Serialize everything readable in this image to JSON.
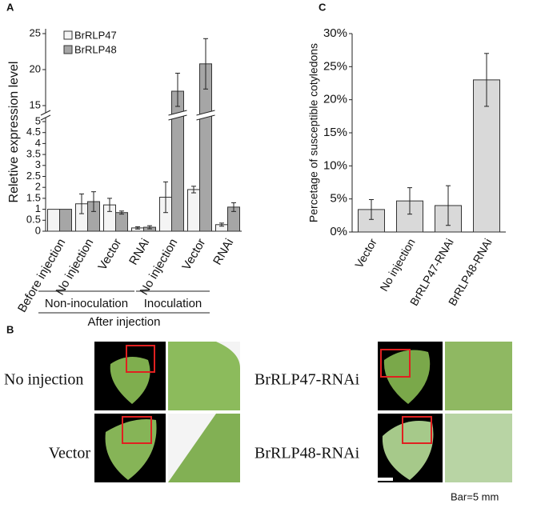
{
  "chart_data": [
    {
      "label": "A",
      "type": "bar",
      "ylabel": "Reletive expression level",
      "categories": [
        "Before injection",
        "No injection",
        "Vector",
        "RNAi",
        "No injection",
        "Vector",
        "RNAi"
      ],
      "series": [
        {
          "name": "BrRLP47",
          "color": "#f4f4f4",
          "values": [
            1,
            1.25,
            1.2,
            0.15,
            1.55,
            1.9,
            0.3
          ],
          "errors": [
            null,
            0.45,
            0.3,
            0.05,
            0.7,
            0.15,
            0.07
          ]
        },
        {
          "name": "BrRLP48",
          "color": "#a6a6a6",
          "values": [
            1,
            1.35,
            0.85,
            0.18,
            17,
            20.8,
            1.1
          ],
          "errors": [
            null,
            0.45,
            0.07,
            0.07,
            2.5,
            3.5,
            0.2
          ]
        }
      ],
      "ylim": [
        0,
        25
      ],
      "ybreak": [
        5,
        15
      ],
      "yticks": [
        0,
        0.5,
        1,
        1.5,
        2,
        2.5,
        3,
        3.5,
        4,
        4.5,
        5,
        15,
        20,
        25
      ],
      "group_labels": [
        "Non-inoculation",
        "Inoculation"
      ],
      "outer_label": "After injection"
    },
    {
      "label": "C",
      "type": "bar",
      "ylabel": "Percetage of susceptible cotyledons",
      "categories": [
        "Vector",
        "No injection",
        "BrRLP47-RNAi",
        "BrRLP48-RNAi"
      ],
      "color": "#d9d9d9",
      "values": [
        3.4,
        4.7,
        4.0,
        23
      ],
      "errors": [
        1.5,
        2.0,
        3.0,
        4.0
      ],
      "ylim": [
        0,
        30
      ],
      "yticks": [
        {
          "value": 0,
          "label": "0%"
        },
        {
          "value": 5,
          "label": "5%"
        },
        {
          "value": 10,
          "label": "10%"
        },
        {
          "value": 15,
          "label": "15%"
        },
        {
          "value": 20,
          "label": "20%"
        },
        {
          "value": 25,
          "label": "25%"
        },
        {
          "value": 30,
          "label": "30%"
        }
      ]
    }
  ],
  "panel_b": {
    "label": "B",
    "rows": [
      "No injection",
      "Vector",
      "BrRLP47-RNAi",
      "BrRLP48-RNAi"
    ],
    "scale": "Bar=5 mm"
  }
}
